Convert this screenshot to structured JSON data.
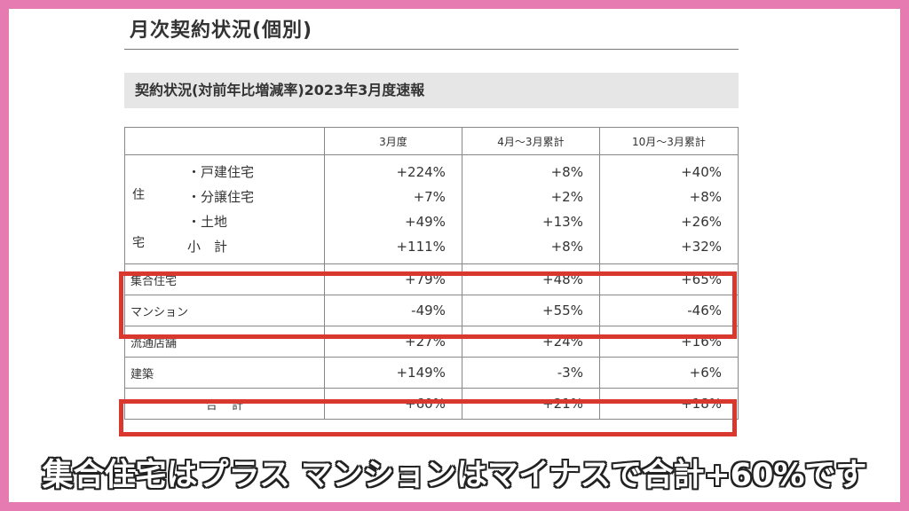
{
  "title": "月次契約状況(個別)",
  "subtitle": "契約状況(対前年比増減率)2023年3月度速報",
  "columns": [
    "",
    "3月度",
    "4月～3月累計",
    "10月～3月累計"
  ],
  "housing": {
    "group_label_top": "住",
    "group_label_bottom": "宅",
    "items": [
      {
        "label": "・戸建住宅",
        "values": [
          "+224%",
          "+8%",
          "+40%"
        ]
      },
      {
        "label": "・分譲住宅",
        "values": [
          "+7%",
          "+2%",
          "+8%"
        ]
      },
      {
        "label": "・土地",
        "values": [
          "+49%",
          "+13%",
          "+26%"
        ]
      },
      {
        "label": "小　計",
        "values": [
          "+111%",
          "+8%",
          "+32%"
        ]
      }
    ]
  },
  "rows": [
    {
      "label": "集合住宅",
      "values": [
        "+79%",
        "+48%",
        "+65%"
      ]
    },
    {
      "label": "マンション",
      "values": [
        "-49%",
        "+55%",
        "-46%"
      ]
    },
    {
      "label": "流通店舗",
      "values": [
        "+27%",
        "+24%",
        "+16%"
      ]
    },
    {
      "label": "建築",
      "values": [
        "+149%",
        "-3%",
        "+6%"
      ]
    }
  ],
  "total": {
    "label": "合 計",
    "values": [
      "+60%",
      "+21%",
      "+18%"
    ]
  },
  "caption": "集合住宅はプラス マンションはマイナスで合計+60%です",
  "colors": {
    "frame": "#e57bb0",
    "highlight": "#d8382d",
    "header_bg": "#e6e6e6"
  }
}
